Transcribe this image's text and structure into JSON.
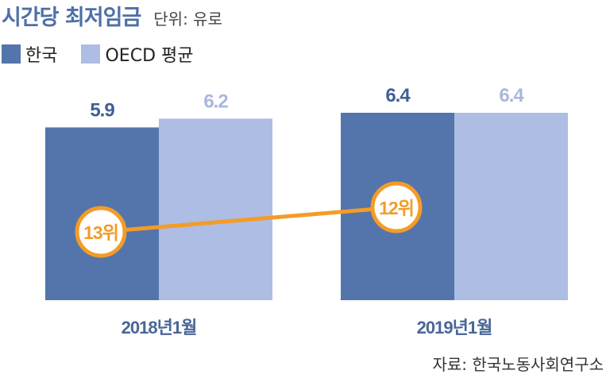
{
  "header": {
    "title": "시간당 최저임금",
    "unit": "단위: 유로"
  },
  "legend": [
    {
      "label": "한국",
      "color": "#5375ab"
    },
    {
      "label": "OECD 평균",
      "color": "#adbde4"
    }
  ],
  "chart_data": {
    "type": "bar",
    "title": "시간당 최저임금",
    "unit": "유로",
    "categories": [
      "2018년1월",
      "2019년1월"
    ],
    "series": [
      {
        "name": "한국",
        "values": [
          5.9,
          6.4
        ],
        "color": "#5375ab",
        "label_color": "#3f5f96"
      },
      {
        "name": "OECD 평균",
        "values": [
          6.2,
          6.4
        ],
        "color": "#adbde4",
        "label_color": "#a8b8dc"
      }
    ],
    "ranks": [
      "13위",
      "12위"
    ],
    "rank_color": "#f39c27",
    "ylim": [
      0,
      6.4
    ]
  },
  "footer": {
    "source": "자료: 한국노동사회연구소"
  }
}
